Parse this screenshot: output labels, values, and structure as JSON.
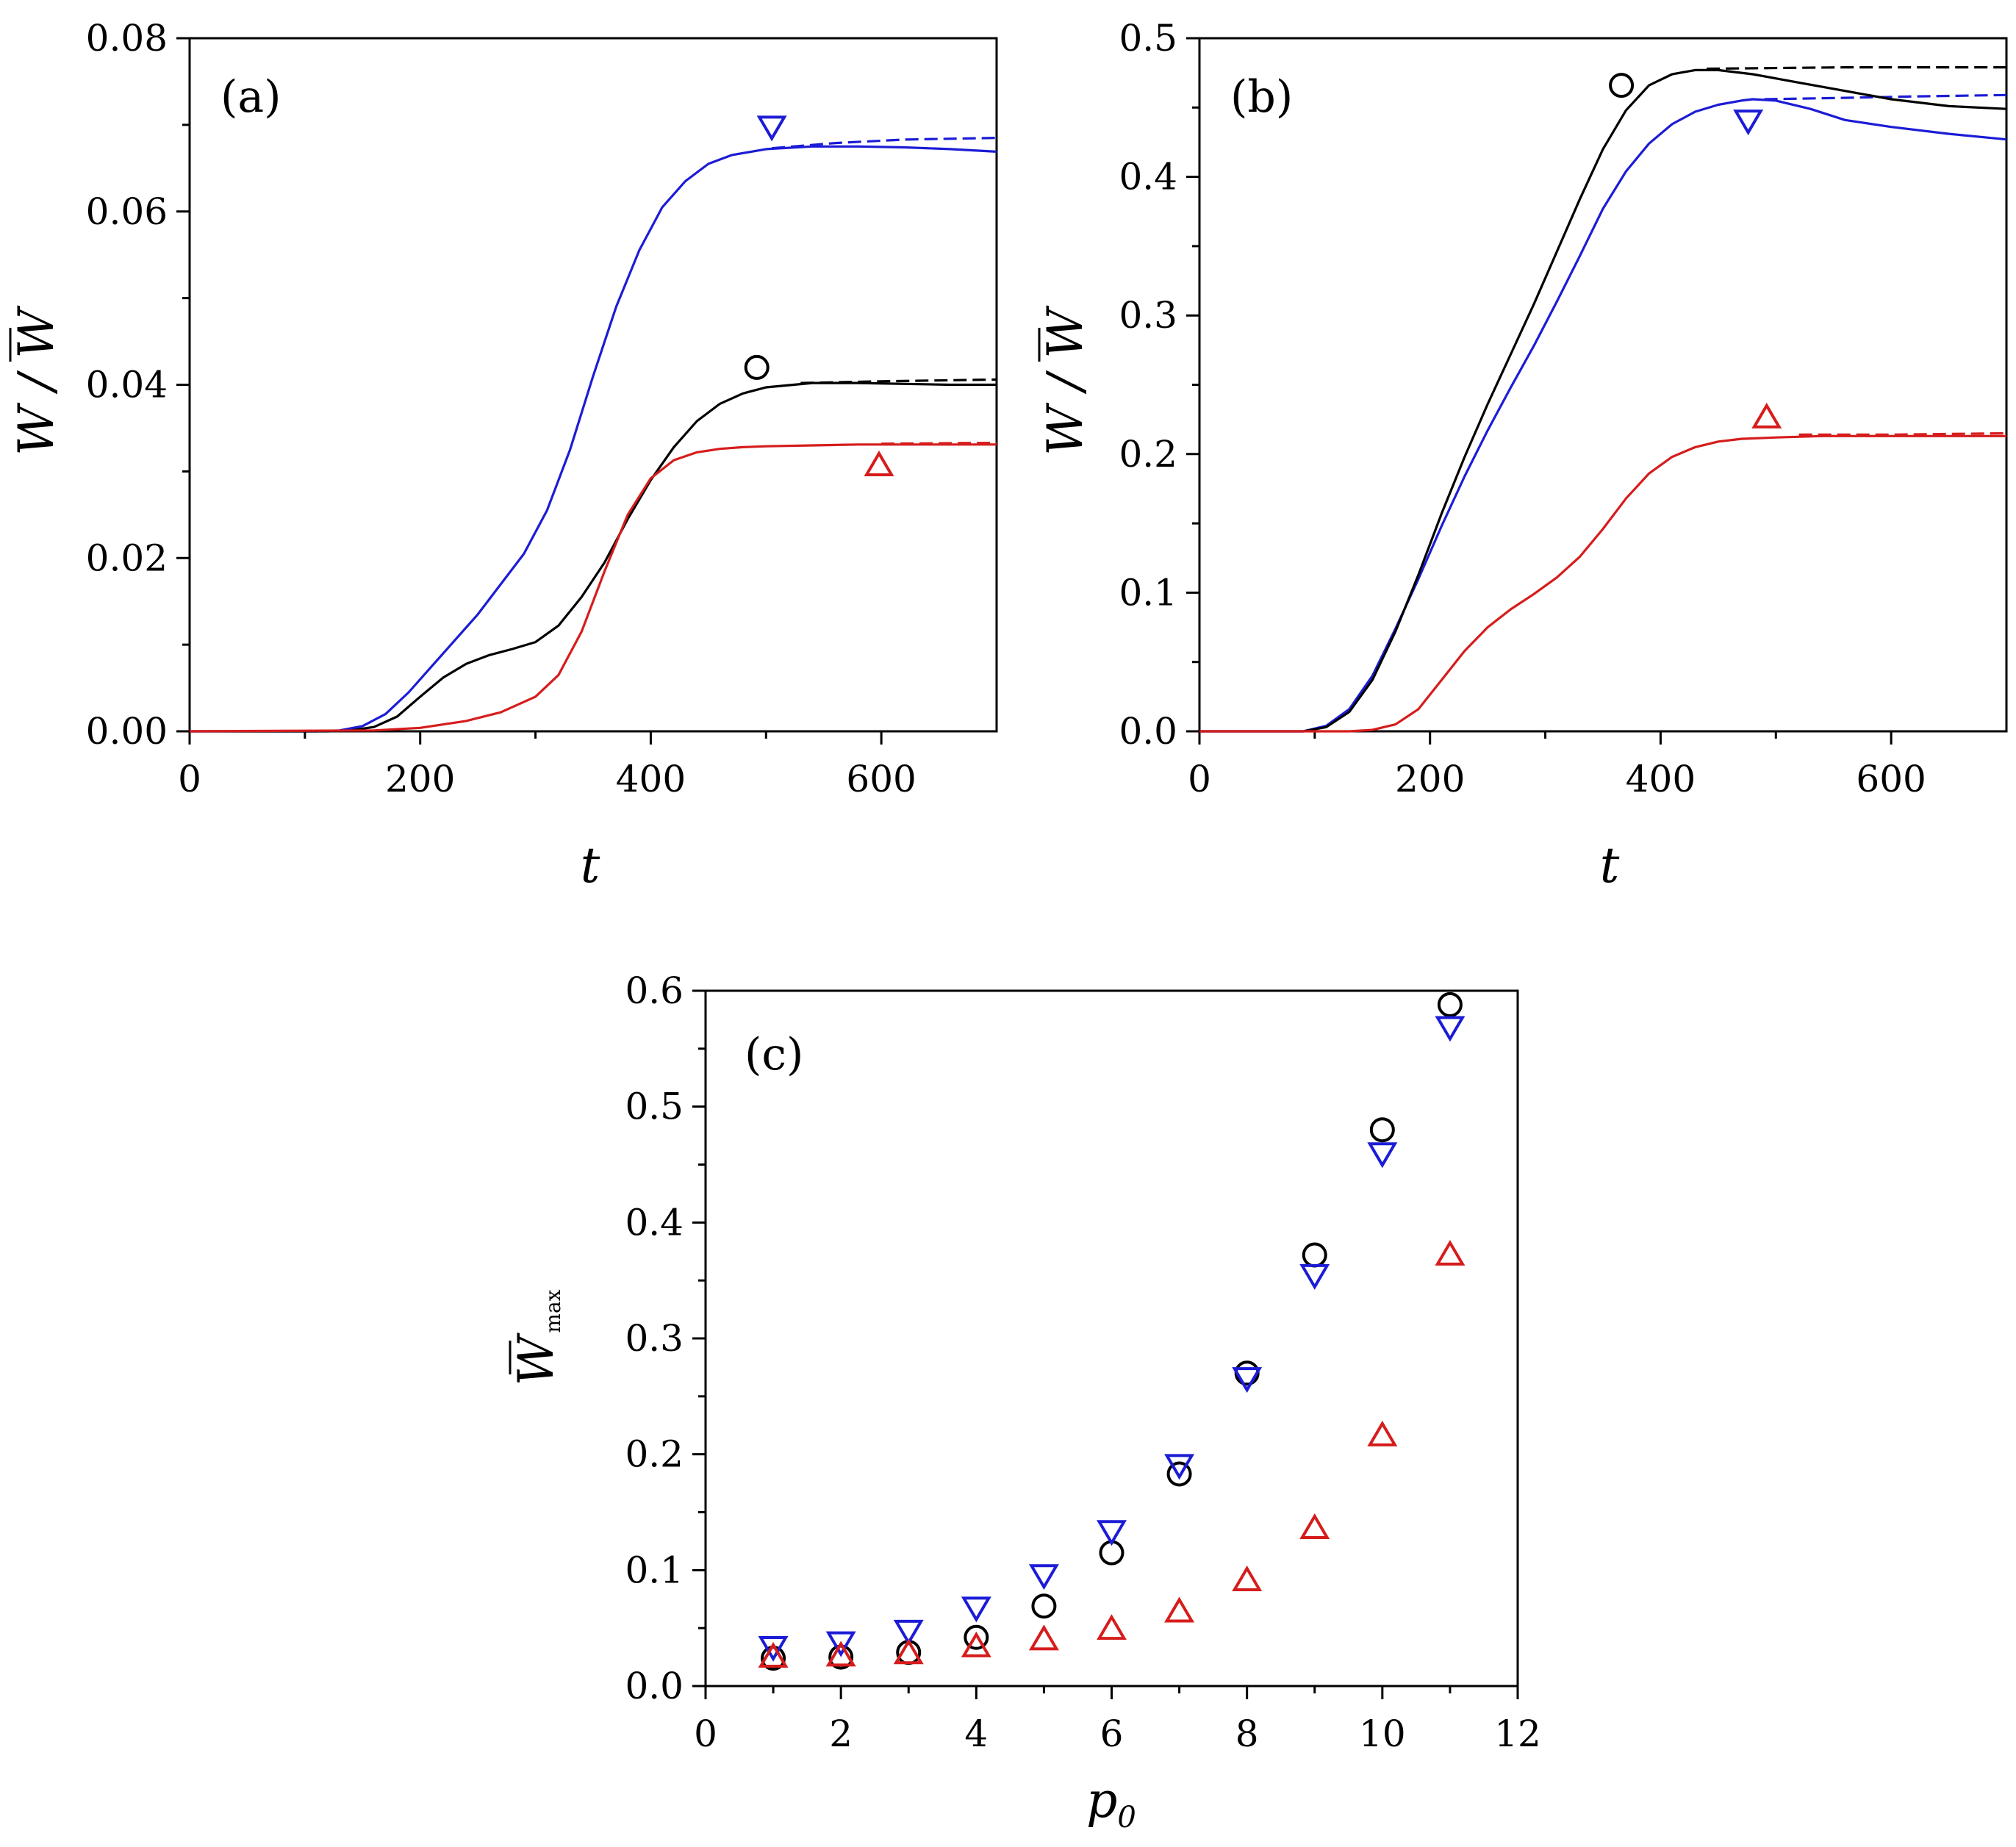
{
  "chart_data": [
    {
      "id": "a",
      "type": "line",
      "panel_label": "(a)",
      "xlabel": "t",
      "ylabel_main": "W / ",
      "ylabel_bar": "W",
      "xlim": [
        0,
        700
      ],
      "ylim": [
        0,
        0.08
      ],
      "xticks": [
        0,
        200,
        400,
        600
      ],
      "xtick_labels": [
        "0",
        "200",
        "400",
        "600"
      ],
      "yticks": [
        0,
        0.02,
        0.04,
        0.06,
        0.08
      ],
      "ytick_labels": [
        "0.00",
        "0.02",
        "0.04",
        "0.06",
        "0.08"
      ],
      "series": [
        {
          "name": "blue",
          "color": "#1c1cd6",
          "dash": false,
          "x": [
            0,
            110,
            130,
            150,
            170,
            190,
            210,
            230,
            250,
            270,
            290,
            310,
            330,
            350,
            370,
            390,
            410,
            430,
            450,
            470,
            500,
            540,
            580,
            620,
            660,
            700
          ],
          "y": [
            0,
            0,
            0.0001,
            0.0006,
            0.002,
            0.0045,
            0.0075,
            0.0105,
            0.0135,
            0.017,
            0.0205,
            0.0255,
            0.0325,
            0.041,
            0.049,
            0.0555,
            0.0605,
            0.0635,
            0.0655,
            0.0665,
            0.0672,
            0.0675,
            0.0675,
            0.0674,
            0.0672,
            0.0669
          ]
        },
        {
          "name": "blue-dashed",
          "color": "#1c1cd6",
          "dash": true,
          "x": [
            505,
            560,
            620,
            700
          ],
          "y": [
            0.0673,
            0.0679,
            0.0683,
            0.0685
          ]
        },
        {
          "name": "black",
          "color": "#000000",
          "dash": false,
          "x": [
            0,
            120,
            140,
            160,
            180,
            200,
            220,
            240,
            260,
            280,
            300,
            320,
            340,
            360,
            380,
            400,
            420,
            440,
            460,
            480,
            500,
            540,
            580,
            620,
            660,
            700
          ],
          "y": [
            0,
            0,
            0.0001,
            0.0005,
            0.0017,
            0.004,
            0.0062,
            0.0078,
            0.0088,
            0.0095,
            0.0103,
            0.0122,
            0.0155,
            0.0195,
            0.0245,
            0.029,
            0.0328,
            0.0358,
            0.0378,
            0.039,
            0.0397,
            0.0402,
            0.0402,
            0.0401,
            0.04,
            0.04
          ]
        },
        {
          "name": "black-dashed",
          "color": "#000000",
          "dash": true,
          "x": [
            530,
            600,
            700
          ],
          "y": [
            0.0402,
            0.0404,
            0.0406
          ]
        },
        {
          "name": "red",
          "color": "#d61c1c",
          "dash": false,
          "x": [
            0,
            160,
            200,
            240,
            270,
            300,
            320,
            340,
            360,
            380,
            400,
            420,
            440,
            460,
            480,
            500,
            540,
            580,
            620,
            660,
            700
          ],
          "y": [
            0,
            0.0001,
            0.0004,
            0.0012,
            0.0022,
            0.004,
            0.0065,
            0.0115,
            0.0185,
            0.025,
            0.0292,
            0.0313,
            0.0322,
            0.0326,
            0.0328,
            0.0329,
            0.033,
            0.0331,
            0.0331,
            0.0331,
            0.0331
          ]
        },
        {
          "name": "red-dashed",
          "color": "#d61c1c",
          "dash": true,
          "x": [
            600,
            700
          ],
          "y": [
            0.0332,
            0.0333
          ]
        }
      ],
      "markers": [
        {
          "shape": "circle",
          "color": "#000000",
          "x": 492,
          "y": 0.042
        },
        {
          "shape": "triangle-down",
          "color": "#1c1cd6",
          "x": 505,
          "y": 0.0697
        },
        {
          "shape": "triangle-up",
          "color": "#d61c1c",
          "x": 598,
          "y": 0.0308
        }
      ]
    },
    {
      "id": "b",
      "type": "line",
      "panel_label": "(b)",
      "xlabel": "t",
      "ylabel_main": "W / ",
      "ylabel_bar": "W",
      "xlim": [
        0,
        700
      ],
      "ylim": [
        0,
        0.5
      ],
      "xticks": [
        0,
        200,
        400,
        600
      ],
      "xtick_labels": [
        "0",
        "200",
        "400",
        "600"
      ],
      "yticks": [
        0,
        0.1,
        0.2,
        0.3,
        0.4,
        0.5
      ],
      "ytick_labels": [
        "0.0",
        "0.1",
        "0.2",
        "0.3",
        "0.4",
        "0.5"
      ],
      "series": [
        {
          "name": "blue",
          "color": "#1c1cd6",
          "dash": false,
          "x": [
            0,
            90,
            110,
            130,
            150,
            170,
            190,
            210,
            230,
            250,
            270,
            290,
            310,
            330,
            350,
            370,
            390,
            410,
            430,
            450,
            470,
            480,
            500,
            530,
            560,
            600,
            650,
            700
          ],
          "y": [
            0,
            0,
            0.004,
            0.016,
            0.04,
            0.074,
            0.11,
            0.148,
            0.184,
            0.217,
            0.248,
            0.278,
            0.31,
            0.343,
            0.377,
            0.404,
            0.424,
            0.438,
            0.447,
            0.452,
            0.455,
            0.456,
            0.455,
            0.449,
            0.441,
            0.436,
            0.431,
            0.427
          ]
        },
        {
          "name": "blue-dashed",
          "color": "#1c1cd6",
          "dash": true,
          "x": [
            490,
            560,
            620,
            700
          ],
          "y": [
            0.456,
            0.457,
            0.458,
            0.459
          ]
        },
        {
          "name": "black",
          "color": "#000000",
          "dash": false,
          "x": [
            0,
            90,
            110,
            130,
            150,
            170,
            190,
            210,
            230,
            250,
            270,
            290,
            310,
            330,
            350,
            370,
            390,
            410,
            430,
            450,
            480,
            520,
            560,
            600,
            650,
            700
          ],
          "y": [
            0,
            0,
            0.003,
            0.014,
            0.037,
            0.072,
            0.113,
            0.157,
            0.198,
            0.236,
            0.272,
            0.308,
            0.346,
            0.384,
            0.42,
            0.448,
            0.466,
            0.474,
            0.477,
            0.477,
            0.474,
            0.468,
            0.462,
            0.456,
            0.451,
            0.449
          ]
        },
        {
          "name": "black-dashed",
          "color": "#000000",
          "dash": true,
          "x": [
            440,
            560,
            700
          ],
          "y": [
            0.478,
            0.479,
            0.479
          ]
        },
        {
          "name": "red",
          "color": "#d61c1c",
          "dash": false,
          "x": [
            0,
            130,
            150,
            170,
            190,
            210,
            230,
            250,
            270,
            290,
            310,
            330,
            350,
            370,
            390,
            410,
            430,
            450,
            470,
            500,
            540,
            600,
            650,
            700
          ],
          "y": [
            0,
            0,
            0.001,
            0.005,
            0.016,
            0.037,
            0.058,
            0.075,
            0.088,
            0.099,
            0.111,
            0.126,
            0.146,
            0.168,
            0.186,
            0.198,
            0.205,
            0.209,
            0.211,
            0.212,
            0.213,
            0.213,
            0.213,
            0.213
          ]
        },
        {
          "name": "red-dashed",
          "color": "#d61c1c",
          "dash": true,
          "x": [
            520,
            600,
            700
          ],
          "y": [
            0.214,
            0.214,
            0.215
          ]
        }
      ],
      "markers": [
        {
          "shape": "circle",
          "color": "#000000",
          "x": 366,
          "y": 0.466
        },
        {
          "shape": "triangle-down",
          "color": "#1c1cd6",
          "x": 476,
          "y": 0.44
        },
        {
          "shape": "triangle-up",
          "color": "#d61c1c",
          "x": 492,
          "y": 0.227
        }
      ]
    },
    {
      "id": "c",
      "type": "scatter",
      "panel_label": "(c)",
      "xlabel_main": "p",
      "xlabel_sub": "0",
      "ylabel_main": "W",
      "ylabel_sub": "max",
      "xlim": [
        0,
        12
      ],
      "ylim": [
        0,
        0.6
      ],
      "xticks": [
        0,
        2,
        4,
        6,
        8,
        10,
        12
      ],
      "xtick_labels": [
        "0",
        "2",
        "4",
        "6",
        "8",
        "10",
        "12"
      ],
      "yticks": [
        0,
        0.1,
        0.2,
        0.3,
        0.4,
        0.5,
        0.6
      ],
      "ytick_labels": [
        "0.0",
        "0.1",
        "0.2",
        "0.3",
        "0.4",
        "0.5",
        "0.6"
      ],
      "series": [
        {
          "name": "circle",
          "shape": "circle",
          "color": "#000000",
          "x": [
            1,
            2,
            3,
            4,
            5,
            6,
            7,
            8,
            9,
            10,
            11
          ],
          "y": [
            0.024,
            0.025,
            0.029,
            0.042,
            0.069,
            0.115,
            0.183,
            0.27,
            0.372,
            0.48,
            0.588
          ]
        },
        {
          "name": "triangle-down",
          "shape": "triangle-down",
          "color": "#1c1cd6",
          "x": [
            1,
            2,
            3,
            4,
            5,
            6,
            7,
            8,
            9,
            10,
            11
          ],
          "y": [
            0.033,
            0.037,
            0.047,
            0.067,
            0.095,
            0.133,
            0.19,
            0.265,
            0.354,
            0.459,
            0.568
          ]
        },
        {
          "name": "triangle-up",
          "shape": "triangle-up",
          "color": "#d61c1c",
          "x": [
            1,
            2,
            3,
            4,
            5,
            6,
            7,
            8,
            9,
            10,
            11
          ],
          "y": [
            0.026,
            0.027,
            0.029,
            0.035,
            0.041,
            0.05,
            0.065,
            0.092,
            0.137,
            0.217,
            0.373
          ]
        }
      ]
    }
  ]
}
